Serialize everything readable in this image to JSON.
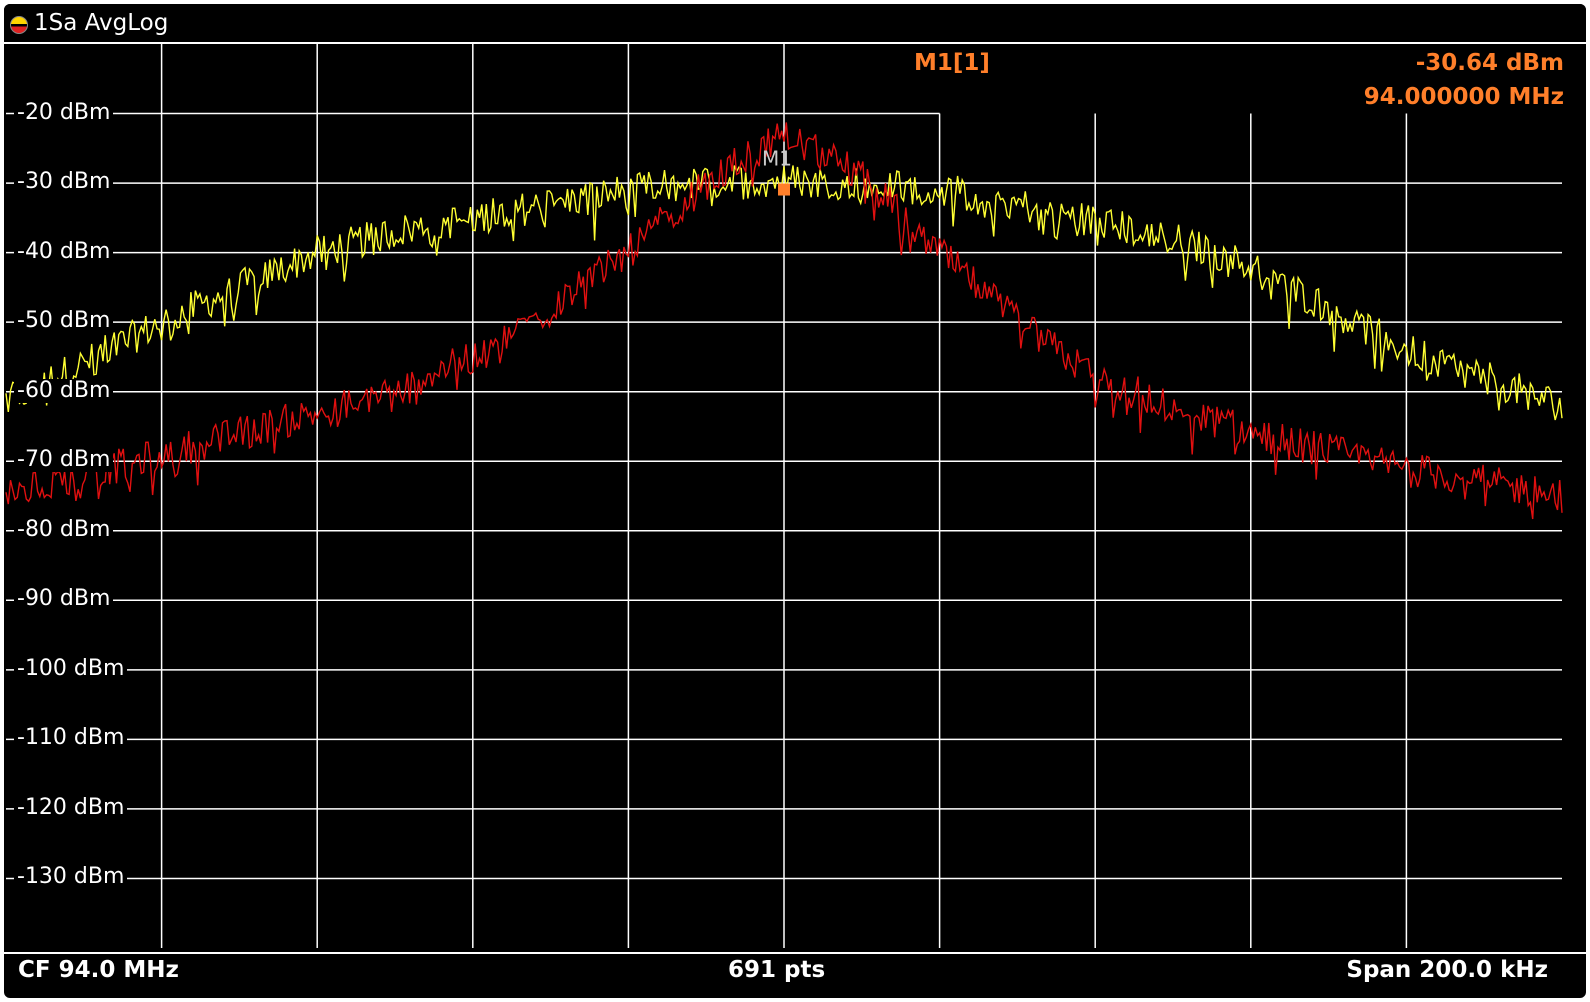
{
  "title_bar": {
    "label": "1Sa AvgLog",
    "icon": "trace-indicator-icon"
  },
  "marker": {
    "label": "M1[1]",
    "level": "-30.64 dBm",
    "frequency": "94.000000 MHz",
    "tag": "M1",
    "color": "#ff7f2a"
  },
  "footer": {
    "center_frequency": "CF 94.0 MHz",
    "points": "691 pts",
    "span": "Span 200.0 kHz"
  },
  "y_axis_labels": [
    "-20 dBm",
    "-30 dBm",
    "-40 dBm",
    "-50 dBm",
    "-60 dBm",
    "-70 dBm",
    "-80 dBm",
    "-90 dBm",
    "-100 dBm",
    "-110 dBm",
    "-120 dBm",
    "-130 dBm"
  ],
  "colors": {
    "background": "#000000",
    "grid": "#ffffff",
    "trace1": "#ffff33",
    "trace2": "#e01010",
    "marker": "#ff7f2a"
  },
  "chart_data": {
    "type": "line",
    "x_unit": "kHz offset from CF",
    "xlim": [
      -100,
      100
    ],
    "ylim": [
      -140,
      -10
    ],
    "grid": true,
    "series": [
      {
        "color": "#ffff33",
        "x": [
          -100,
          -90,
          -80,
          -70,
          -60,
          -50,
          -40,
          -30,
          -20,
          -10,
          0,
          10,
          20,
          30,
          40,
          50,
          60,
          70,
          80,
          90,
          100
        ],
        "y": [
          -61,
          -56,
          -50,
          -45,
          -40,
          -37,
          -35,
          -33,
          -31,
          -30,
          -29.5,
          -30,
          -31,
          -33,
          -35.5,
          -38,
          -42,
          -48,
          -54,
          -58,
          -62
        ]
      },
      {
        "color": "#e01010",
        "x": [
          -100,
          -90,
          -80,
          -70,
          -60,
          -50,
          -40,
          -30,
          -20,
          -10,
          0,
          10,
          20,
          30,
          40,
          50,
          60,
          70,
          80,
          90,
          100
        ],
        "y": [
          -75,
          -72,
          -69,
          -66,
          -63,
          -59.5,
          -55,
          -48,
          -40,
          -30,
          -23,
          -29,
          -40,
          -50,
          -58,
          -62,
          -66,
          -68.5,
          -71,
          -73,
          -75
        ]
      }
    ],
    "marker": {
      "x": 0,
      "y": -30.64
    }
  }
}
